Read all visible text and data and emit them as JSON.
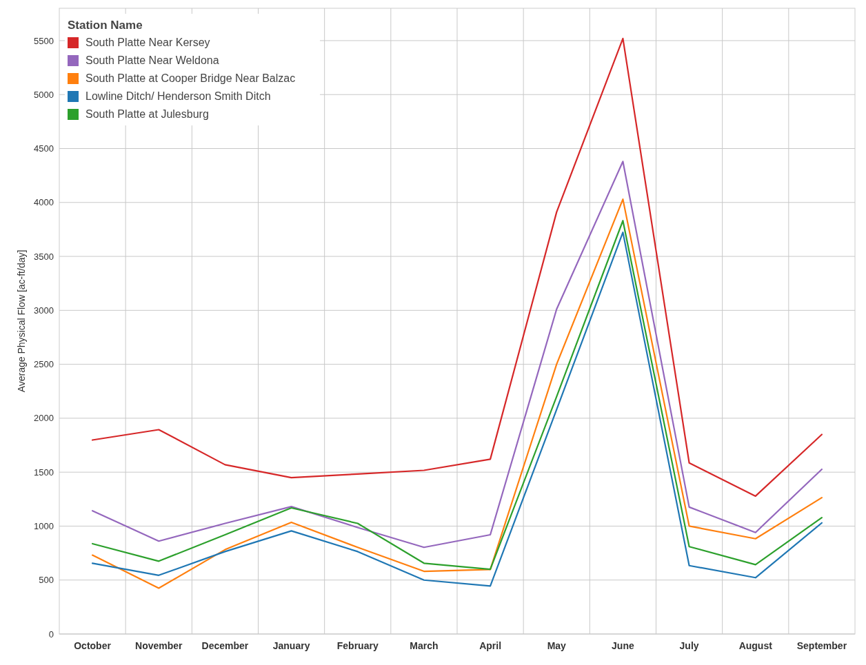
{
  "chart_data": {
    "type": "line",
    "ylabel": "Average Physical Flow [ac-ft/day]",
    "legend_title": "Station Name",
    "legend": "top left",
    "grid": true,
    "categories": [
      "October",
      "November",
      "December",
      "January",
      "February",
      "March",
      "April",
      "May",
      "June",
      "July",
      "August",
      "September"
    ],
    "ylim": [
      0,
      5800
    ],
    "yticks": [
      0,
      500,
      1000,
      1500,
      2000,
      2500,
      3000,
      3500,
      4000,
      4500,
      5000,
      5500
    ],
    "series": [
      {
        "name": "South Platte Near Kersey",
        "color": "#d62728",
        "values": [
          1798,
          1894,
          1569,
          1449,
          1483,
          1517,
          1620,
          3910,
          5520,
          1586,
          1278,
          1849
        ]
      },
      {
        "name": "South Platte Near Weldona",
        "color": "#9467bd",
        "values": [
          1142,
          861,
          1025,
          1181,
          987,
          803,
          920,
          3010,
          4380,
          1176,
          941,
          1527
        ]
      },
      {
        "name": "South Platte at Cooper Bridge Near Balzac",
        "color": "#ff7f0e",
        "values": [
          731,
          425,
          782,
          1035,
          803,
          581,
          598,
          2500,
          4030,
          1000,
          883,
          1264
        ]
      },
      {
        "name": "Lowline Ditch/ Henderson Smith Ditch",
        "color": "#1f77b4",
        "values": [
          656,
          544,
          764,
          956,
          764,
          500,
          445,
          2080,
          3723,
          634,
          522,
          1030
        ]
      },
      {
        "name": "South Platte at Julesburg",
        "color": "#2ca02c",
        "values": [
          837,
          675,
          920,
          1169,
          1025,
          656,
          600,
          2200,
          3831,
          810,
          643,
          1079
        ]
      }
    ]
  }
}
